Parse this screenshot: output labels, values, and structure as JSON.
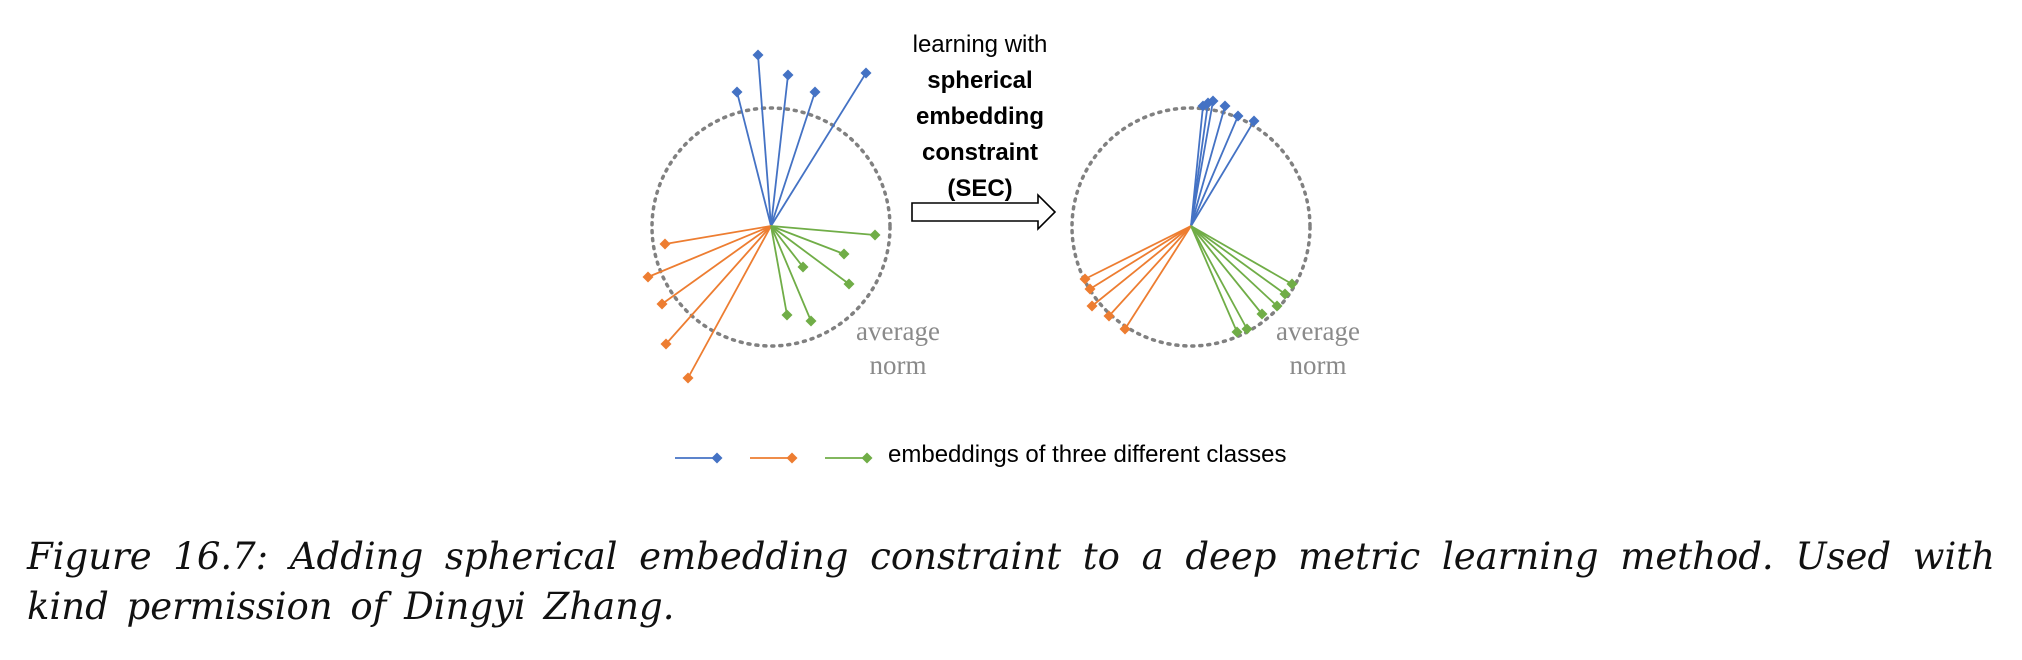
{
  "figure": {
    "arrow_text_line1": "learning with",
    "arrow_text_bold": [
      "spherical",
      "embedding",
      "constraint",
      "(SEC)"
    ],
    "circle_label_line1": "average",
    "circle_label_line2": "norm",
    "legend_text": "embeddings of three different classes",
    "colors": {
      "blue": "#4472C4",
      "orange": "#ED7D31",
      "green": "#70AD47",
      "circle": "#808080",
      "label": "#8a8a8a"
    },
    "icons": {
      "marker": "diamond",
      "arrow": "hollow-right-arrow"
    }
  },
  "caption": {
    "text": "Figure 16.7: Adding spherical embedding constraint to a deep metric learning method.  Used with kind permission of Dingyi Zhang."
  }
}
